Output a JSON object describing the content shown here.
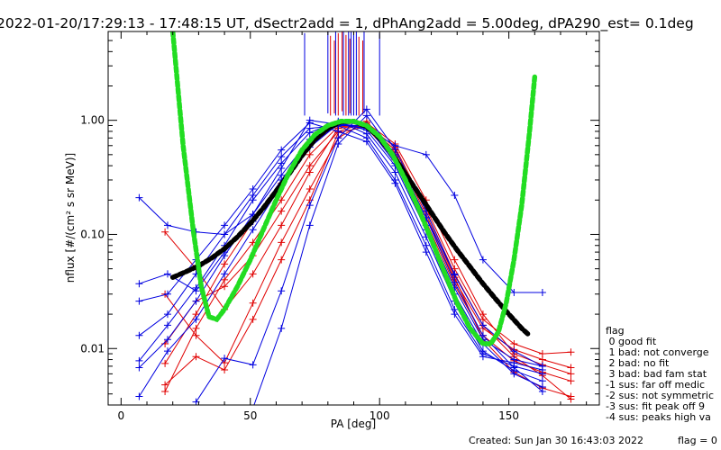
{
  "chart_data": {
    "type": "line",
    "title": "2022-01-20/17:29:13 - 17:48:15 UT, dSectr2add = 1, dPhAng2add = 5.00deg, dPA290_est=    0.1deg",
    "xlabel": "PA [deg]",
    "ylabel": "nflux [#/(cm² s sr MeV)]",
    "xlim": [
      -5,
      185
    ],
    "ylim": [
      0.0032,
      6
    ],
    "yscale": "log",
    "x_ticks": [
      0,
      50,
      100,
      150
    ],
    "x_tick_labels": [
      "0",
      "50",
      "100",
      "150"
    ],
    "y_ticks": [
      0.01,
      0.1,
      1.0
    ],
    "y_tick_labels": [
      "0.01",
      "0.10",
      "1.00"
    ],
    "grid": false,
    "colors": {
      "red": "#e00000",
      "blue": "#0000e0",
      "black": "#000000",
      "green": "#22dd22"
    },
    "series": [
      {
        "color": "red",
        "points": [
          [
            17,
            0.0042
          ],
          [
            29,
            0.015
          ],
          [
            40,
            0.04
          ],
          [
            51,
            0.085
          ],
          [
            62,
            0.2
          ],
          [
            73,
            0.5
          ],
          [
            84,
            0.88
          ],
          [
            95,
            0.9
          ],
          [
            106,
            0.55
          ],
          [
            118,
            0.16
          ],
          [
            129,
            0.045
          ],
          [
            140,
            0.016
          ],
          [
            152,
            0.0085
          ],
          [
            163,
            0.0058
          ],
          [
            174,
            0.0036
          ]
        ]
      },
      {
        "color": "red",
        "points": [
          [
            17,
            0.0074
          ],
          [
            29,
            0.02
          ],
          [
            40,
            0.055
          ],
          [
            51,
            0.13
          ],
          [
            62,
            0.28
          ],
          [
            73,
            0.6
          ],
          [
            84,
            0.92
          ],
          [
            95,
            0.86
          ],
          [
            106,
            0.45
          ],
          [
            118,
            0.13
          ],
          [
            129,
            0.036
          ],
          [
            140,
            0.013
          ],
          [
            152,
            0.0078
          ],
          [
            163,
            0.0062
          ],
          [
            174,
            0.0052
          ]
        ]
      },
      {
        "color": "red",
        "points": [
          [
            17,
            0.011
          ],
          [
            29,
            0.026
          ],
          [
            40,
            0.035
          ],
          [
            51,
            0.065
          ],
          [
            62,
            0.16
          ],
          [
            73,
            0.4
          ],
          [
            84,
            0.8
          ],
          [
            95,
            0.95
          ],
          [
            106,
            0.62
          ],
          [
            118,
            0.2
          ],
          [
            129,
            0.06
          ],
          [
            140,
            0.02
          ],
          [
            152,
            0.009
          ],
          [
            163,
            0.0072
          ],
          [
            174,
            0.006
          ]
        ]
      },
      {
        "color": "red",
        "points": [
          [
            17,
            0.03
          ],
          [
            29,
            0.013
          ],
          [
            40,
            0.0075
          ],
          [
            51,
            0.025
          ],
          [
            62,
            0.085
          ],
          [
            73,
            0.25
          ],
          [
            84,
            0.7
          ],
          [
            95,
            0.98
          ],
          [
            106,
            0.5
          ],
          [
            118,
            0.14
          ],
          [
            129,
            0.04
          ],
          [
            140,
            0.015
          ],
          [
            152,
            0.0098
          ],
          [
            163,
            0.008
          ],
          [
            174,
            0.0068
          ]
        ]
      },
      {
        "color": "red",
        "points": [
          [
            17,
            0.105
          ],
          [
            29,
            0.05
          ],
          [
            40,
            0.022
          ],
          [
            51,
            0.045
          ],
          [
            62,
            0.12
          ],
          [
            73,
            0.35
          ],
          [
            84,
            0.85
          ],
          [
            95,
            0.92
          ],
          [
            106,
            0.58
          ],
          [
            118,
            0.17
          ],
          [
            129,
            0.05
          ],
          [
            140,
            0.018
          ],
          [
            152,
            0.011
          ],
          [
            163,
            0.009
          ],
          [
            174,
            0.0093
          ]
        ]
      },
      {
        "color": "red",
        "points": [
          [
            17,
            0.0048
          ],
          [
            29,
            0.0085
          ],
          [
            40,
            0.0065
          ],
          [
            51,
            0.018
          ],
          [
            62,
            0.06
          ],
          [
            73,
            0.2
          ],
          [
            84,
            0.78
          ],
          [
            95,
            0.88
          ],
          [
            106,
            0.52
          ],
          [
            118,
            0.15
          ],
          [
            129,
            0.042
          ],
          [
            140,
            0.012
          ],
          [
            152,
            0.0062
          ],
          [
            163,
            0.0045
          ],
          [
            174,
            0.0038
          ]
        ]
      },
      {
        "color": "blue",
        "points": [
          [
            7,
            0.0038
          ],
          [
            18,
            0.0095
          ],
          [
            29,
            0.018
          ],
          [
            40,
            0.045
          ],
          [
            51,
            0.11
          ],
          [
            62,
            0.27
          ],
          [
            73,
            0.58
          ],
          [
            84,
            0.93
          ],
          [
            95,
            0.88
          ],
          [
            106,
            0.48
          ],
          [
            118,
            0.14
          ],
          [
            129,
            0.038
          ],
          [
            140,
            0.013
          ],
          [
            152,
            0.0068
          ],
          [
            163,
            0.0042
          ]
        ]
      },
      {
        "color": "blue",
        "points": [
          [
            7,
            0.0068
          ],
          [
            18,
            0.012
          ],
          [
            29,
            0.026
          ],
          [
            40,
            0.065
          ],
          [
            51,
            0.15
          ],
          [
            62,
            0.33
          ],
          [
            73,
            0.68
          ],
          [
            84,
            0.96
          ],
          [
            95,
            0.82
          ],
          [
            106,
            0.4
          ],
          [
            118,
            0.11
          ],
          [
            129,
            0.03
          ],
          [
            140,
            0.011
          ],
          [
            152,
            0.006
          ],
          [
            163,
            0.0046
          ]
        ]
      },
      {
        "color": "blue",
        "points": [
          [
            7,
            0.0078
          ],
          [
            18,
            0.016
          ],
          [
            29,
            0.034
          ],
          [
            40,
            0.08
          ],
          [
            51,
            0.2
          ],
          [
            62,
            0.42
          ],
          [
            73,
            0.78
          ],
          [
            84,
            0.98
          ],
          [
            95,
            0.76
          ],
          [
            106,
            0.35
          ],
          [
            118,
            0.095
          ],
          [
            129,
            0.026
          ],
          [
            140,
            0.0095
          ],
          [
            152,
            0.0064
          ],
          [
            163,
            0.0052
          ]
        ]
      },
      {
        "color": "blue",
        "points": [
          [
            7,
            0.013
          ],
          [
            18,
            0.02
          ],
          [
            29,
            0.045
          ],
          [
            40,
            0.1
          ],
          [
            51,
            0.22
          ],
          [
            62,
            0.48
          ],
          [
            73,
            0.85
          ],
          [
            84,
            0.9
          ],
          [
            95,
            0.7
          ],
          [
            106,
            0.3
          ],
          [
            118,
            0.08
          ],
          [
            129,
            0.022
          ],
          [
            140,
            0.009
          ],
          [
            152,
            0.007
          ],
          [
            163,
            0.006
          ]
        ]
      },
      {
        "color": "blue",
        "points": [
          [
            7,
            0.026
          ],
          [
            18,
            0.03
          ],
          [
            29,
            0.06
          ],
          [
            40,
            0.12
          ],
          [
            51,
            0.25
          ],
          [
            62,
            0.55
          ],
          [
            73,
            0.95
          ],
          [
            84,
            0.8
          ],
          [
            95,
            0.65
          ],
          [
            106,
            0.28
          ],
          [
            118,
            0.07
          ],
          [
            129,
            0.02
          ],
          [
            140,
            0.0085
          ],
          [
            152,
            0.0075
          ],
          [
            163,
            0.0065
          ]
        ]
      },
      {
        "color": "blue",
        "points": [
          [
            7,
            0.037
          ],
          [
            18,
            0.045
          ],
          [
            29,
            0.032
          ],
          [
            40,
            0.07
          ],
          [
            51,
            0.13
          ],
          [
            62,
            0.3
          ],
          [
            73,
            0.65
          ],
          [
            84,
            0.9
          ],
          [
            95,
            0.9
          ],
          [
            106,
            0.42
          ],
          [
            118,
            0.12
          ],
          [
            129,
            0.034
          ],
          [
            140,
            0.012
          ],
          [
            152,
            0.008
          ],
          [
            163,
            0.007
          ]
        ]
      },
      {
        "color": "blue",
        "points": [
          [
            7,
            0.21
          ],
          [
            18,
            0.12
          ],
          [
            29,
            0.105
          ],
          [
            40,
            0.1
          ],
          [
            51,
            0.15
          ],
          [
            62,
            0.38
          ],
          [
            73,
            1.0
          ],
          [
            84,
            0.92
          ],
          [
            95,
            0.85
          ],
          [
            106,
            0.6
          ],
          [
            118,
            0.5
          ],
          [
            129,
            0.22
          ],
          [
            140,
            0.06
          ],
          [
            152,
            0.031
          ],
          [
            163,
            0.031
          ]
        ]
      },
      {
        "color": "blue",
        "points": [
          [
            29,
            0.0034
          ],
          [
            40,
            0.0082
          ],
          [
            51,
            0.0072
          ],
          [
            62,
            0.032
          ],
          [
            73,
            0.18
          ],
          [
            84,
            0.7
          ],
          [
            95,
            1.25
          ],
          [
            106,
            0.56
          ],
          [
            118,
            0.16
          ],
          [
            129,
            0.044
          ],
          [
            140,
            0.016
          ],
          [
            152,
            0.0095
          ],
          [
            163,
            0.007
          ]
        ]
      },
      {
        "color": "blue",
        "points": [
          [
            51,
            0.003
          ],
          [
            62,
            0.015
          ],
          [
            73,
            0.12
          ],
          [
            84,
            0.62
          ],
          [
            95,
            1.1
          ],
          [
            106,
            0.5
          ],
          [
            118,
            0.14
          ],
          [
            129,
            0.045
          ]
        ]
      }
    ],
    "vertical_segments": {
      "red": [
        [
          81,
          1.1,
          5.5
        ],
        [
          82.5,
          1.15,
          5.0
        ],
        [
          84,
          1.1,
          5.8
        ],
        [
          85.5,
          1.2,
          6.0
        ],
        [
          87,
          1.1,
          5.6
        ],
        [
          88.5,
          1.15,
          5.2
        ],
        [
          92,
          1.1,
          5.4
        ],
        [
          93.5,
          1.12,
          5.0
        ]
      ],
      "blue": [
        [
          71,
          1.1,
          5.8
        ],
        [
          80,
          1.15,
          6.0
        ],
        [
          83,
          1.1,
          6.0
        ],
        [
          86,
          1.1,
          6.0
        ],
        [
          88,
          1.1,
          6.0
        ],
        [
          89,
          1.1,
          6.0
        ],
        [
          90,
          1.1,
          6.0
        ],
        [
          91,
          1.1,
          6.0
        ],
        [
          94,
          1.15,
          6.0
        ],
        [
          100,
          1.1,
          5.8
        ]
      ]
    },
    "fits": [
      {
        "color": "black",
        "x": [
          20,
          25,
          30,
          35,
          40,
          45,
          50,
          55,
          60,
          65,
          70,
          75,
          80,
          85,
          90,
          95,
          100,
          105,
          110,
          115,
          120,
          125,
          130,
          135,
          140,
          145,
          150,
          155,
          158
        ],
        "y": [
          0.042,
          0.047,
          0.053,
          0.062,
          0.075,
          0.095,
          0.125,
          0.17,
          0.24,
          0.34,
          0.49,
          0.68,
          0.85,
          0.97,
          0.98,
          0.88,
          0.7,
          0.5,
          0.34,
          0.23,
          0.155,
          0.105,
          0.073,
          0.052,
          0.037,
          0.027,
          0.02,
          0.015,
          0.013
        ]
      },
      {
        "color": "green",
        "x": [
          20,
          24,
          28,
          31,
          34,
          37,
          40,
          45,
          50,
          55,
          60,
          65,
          70,
          75,
          80,
          85,
          90,
          95,
          100,
          105,
          110,
          115,
          120,
          125,
          130,
          135,
          140,
          143,
          146,
          149,
          152,
          155,
          158,
          160
        ],
        "y": [
          6.0,
          0.6,
          0.105,
          0.035,
          0.019,
          0.018,
          0.022,
          0.035,
          0.06,
          0.11,
          0.2,
          0.35,
          0.55,
          0.75,
          0.9,
          0.98,
          0.98,
          0.9,
          0.72,
          0.5,
          0.3,
          0.17,
          0.09,
          0.047,
          0.025,
          0.015,
          0.011,
          0.011,
          0.014,
          0.025,
          0.06,
          0.18,
          0.8,
          2.4
        ]
      }
    ]
  },
  "legend": {
    "title": "flag",
    "entries": [
      " 0 good fit",
      " 1 bad: not converge",
      " 2 bad: no fit",
      " 3 bad: bad fam stat",
      "-1 sus: far off medic",
      "-2 sus: not symmetric",
      "-3 sus: fit peak off 9",
      "-4 sus: peaks high va"
    ]
  },
  "footer": {
    "created": "Created: Sun Jan 30 16:43:03 2022",
    "flag": "flag = 0"
  }
}
